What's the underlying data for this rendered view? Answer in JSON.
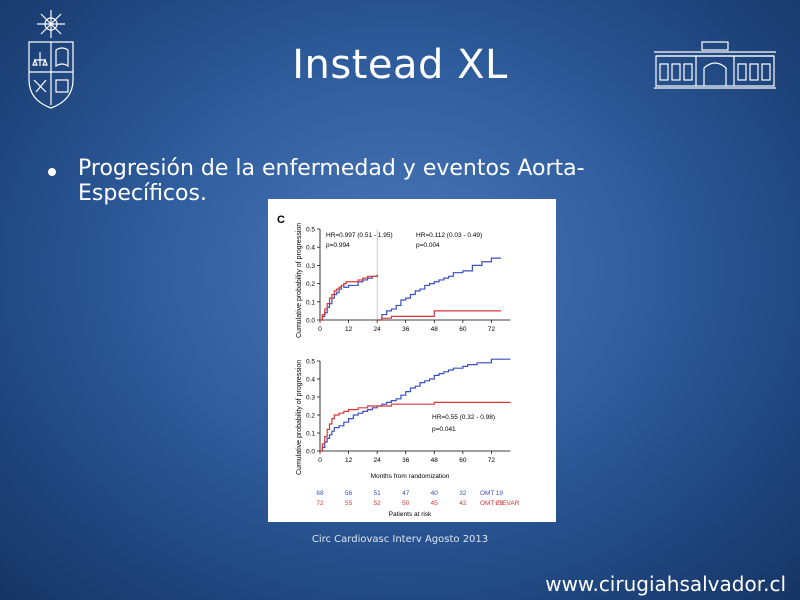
{
  "slide": {
    "title": "Instead XL",
    "bullet": "Progresión de la enfermedad y eventos Aorta-Específicos.",
    "citation": "Circ Cardiovasc Interv Agosto 2013",
    "website": "www.cirugiahsalvador.cl"
  },
  "figure": {
    "panel_label": "C",
    "ylabel": "Cumulative probability of progression",
    "xlabel": "Months from randomization",
    "top_panel": {
      "ylim": [
        0,
        0.5
      ],
      "yticks": [
        "0.0",
        "0.1",
        "0.2",
        "0.3",
        "0.4",
        "0.5"
      ],
      "xticks": [
        "0",
        "12",
        "24",
        "36",
        "48",
        "60",
        "72"
      ],
      "annotation_left_1": "HR=0.997  (0.51 - 1.95)",
      "annotation_left_2": "p=0.994",
      "annotation_right_1": "HR=0.112  (0.03 - 0.49)",
      "annotation_right_2": "p=0.004"
    },
    "bottom_panel": {
      "ylim": [
        0,
        0.5
      ],
      "yticks": [
        "0.0",
        "0.1",
        "0.2",
        "0.3",
        "0.4",
        "0.5"
      ],
      "xticks": [
        "0",
        "12",
        "24",
        "36",
        "48",
        "60",
        "72"
      ],
      "annotation_1": "HR=0.55  (0.32 - 0.98)",
      "annotation_2": "p=0.041"
    },
    "risk_table": {
      "title": "Patients at risk",
      "rows": [
        {
          "label": "OMT",
          "color": "#3a4fc0",
          "values": [
            "68",
            "56",
            "51",
            "47",
            "40",
            "32",
            "19"
          ]
        },
        {
          "label": "OMT+TEVAR",
          "color": "#d83838",
          "values": [
            "72",
            "55",
            "52",
            "50",
            "45",
            "42",
            "23"
          ]
        }
      ]
    }
  },
  "chart_data": [
    {
      "type": "line",
      "title": "",
      "xlabel": "",
      "ylabel": "Cumulative probability of progression",
      "xlim": [
        0,
        84
      ],
      "ylim": [
        0,
        0.5
      ],
      "series": [
        {
          "name": "OMT",
          "color": "#3a4fc0",
          "segment": "0-24",
          "x": [
            0,
            1,
            2,
            3,
            4,
            5,
            6,
            7,
            8,
            9,
            10,
            11,
            12,
            14,
            16,
            18,
            20,
            22,
            24
          ],
          "y": [
            0,
            0.02,
            0.04,
            0.07,
            0.09,
            0.12,
            0.14,
            0.15,
            0.17,
            0.19,
            0.18,
            0.18,
            0.19,
            0.19,
            0.21,
            0.22,
            0.23,
            0.24,
            0.25
          ]
        },
        {
          "name": "OMT+TEVAR",
          "color": "#d83838",
          "segment": "0-24",
          "x": [
            0,
            1,
            2,
            3,
            4,
            5,
            6,
            7,
            8,
            9,
            10,
            11,
            12,
            14,
            16,
            18,
            20,
            22,
            24
          ],
          "y": [
            0,
            0.03,
            0.06,
            0.09,
            0.12,
            0.14,
            0.16,
            0.17,
            0.18,
            0.19,
            0.2,
            0.21,
            0.21,
            0.21,
            0.22,
            0.23,
            0.24,
            0.24,
            0.25
          ]
        },
        {
          "name": "OMT",
          "color": "#3a4fc0",
          "segment": "24-84",
          "x": [
            24,
            26,
            28,
            30,
            32,
            34,
            36,
            38,
            40,
            42,
            44,
            46,
            48,
            50,
            52,
            54,
            56,
            60,
            64,
            68,
            72,
            76
          ],
          "y": [
            0,
            0.03,
            0.05,
            0.06,
            0.08,
            0.11,
            0.12,
            0.14,
            0.16,
            0.17,
            0.19,
            0.2,
            0.21,
            0.22,
            0.23,
            0.24,
            0.26,
            0.27,
            0.3,
            0.32,
            0.34,
            0.34
          ]
        },
        {
          "name": "OMT+TEVAR",
          "color": "#d83838",
          "segment": "24-84",
          "x": [
            24,
            26,
            30,
            36,
            48,
            60,
            76
          ],
          "y": [
            0,
            0.01,
            0.02,
            0.02,
            0.05,
            0.05,
            0.05
          ]
        }
      ]
    },
    {
      "type": "line",
      "title": "",
      "xlabel": "Months from randomization",
      "ylabel": "Cumulative probability of progression",
      "xlim": [
        0,
        84
      ],
      "ylim": [
        0,
        0.5
      ],
      "series": [
        {
          "name": "OMT",
          "color": "#3a4fc0",
          "x": [
            0,
            1,
            2,
            3,
            4,
            5,
            6,
            8,
            10,
            12,
            14,
            16,
            18,
            20,
            22,
            24,
            26,
            28,
            30,
            32,
            34,
            36,
            38,
            40,
            42,
            44,
            46,
            48,
            50,
            52,
            54,
            56,
            58,
            60,
            62,
            66,
            70,
            72,
            76,
            80
          ],
          "y": [
            0,
            0.02,
            0.05,
            0.07,
            0.09,
            0.11,
            0.13,
            0.14,
            0.16,
            0.18,
            0.2,
            0.21,
            0.22,
            0.23,
            0.24,
            0.25,
            0.26,
            0.27,
            0.28,
            0.29,
            0.31,
            0.33,
            0.35,
            0.36,
            0.38,
            0.39,
            0.4,
            0.42,
            0.43,
            0.44,
            0.45,
            0.46,
            0.46,
            0.47,
            0.48,
            0.49,
            0.49,
            0.51,
            0.51,
            0.51
          ]
        },
        {
          "name": "OMT+TEVAR",
          "color": "#d83838",
          "x": [
            0,
            1,
            2,
            3,
            4,
            5,
            6,
            8,
            10,
            12,
            16,
            20,
            24,
            30,
            36,
            48,
            60,
            72,
            80
          ],
          "y": [
            0,
            0.04,
            0.08,
            0.12,
            0.15,
            0.18,
            0.2,
            0.21,
            0.22,
            0.23,
            0.24,
            0.25,
            0.25,
            0.26,
            0.26,
            0.27,
            0.27,
            0.27,
            0.27
          ]
        }
      ]
    }
  ]
}
